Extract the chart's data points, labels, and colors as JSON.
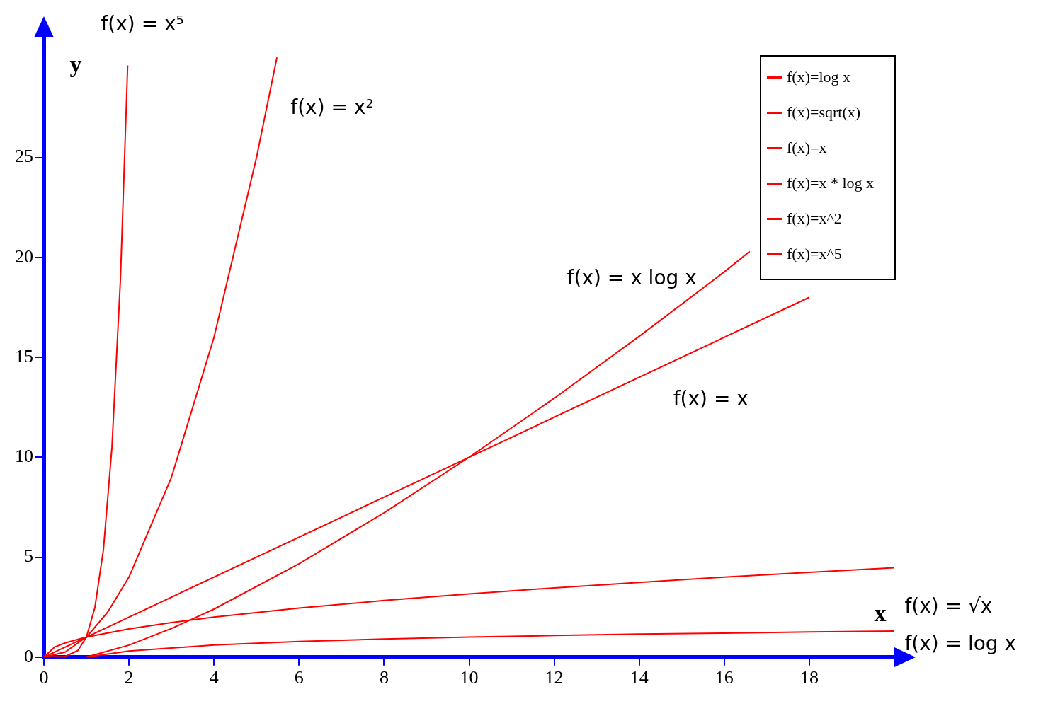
{
  "chart_data": {
    "type": "line",
    "xlabel": "x",
    "ylabel": "y",
    "xlim": [
      0,
      20
    ],
    "ylim": [
      0,
      31
    ],
    "xticks": [
      0,
      2,
      4,
      6,
      8,
      10,
      12,
      14,
      16,
      18
    ],
    "yticks": [
      0,
      5,
      10,
      15,
      20,
      25
    ],
    "legend": "top right",
    "series": [
      {
        "name": "f(x)=log x",
        "color": "#ff0000",
        "x": [
          1,
          2,
          4,
          6,
          8,
          10,
          12,
          14,
          16,
          18,
          20
        ],
        "values": [
          0,
          0.3,
          0.6,
          0.78,
          0.9,
          1.0,
          1.08,
          1.15,
          1.2,
          1.26,
          1.3
        ]
      },
      {
        "name": "f(x)=sqrt(x)",
        "color": "#ff0000",
        "x": [
          0,
          0.25,
          0.5,
          1,
          2,
          3,
          4,
          6,
          8,
          10,
          12,
          14,
          16,
          18,
          20
        ],
        "values": [
          0,
          0.5,
          0.71,
          1,
          1.41,
          1.73,
          2,
          2.45,
          2.83,
          3.16,
          3.46,
          3.74,
          4,
          4.24,
          4.47
        ]
      },
      {
        "name": "f(x)=x",
        "color": "#ff0000",
        "x": [
          0,
          1,
          10,
          18
        ],
        "values": [
          0,
          1,
          10,
          18
        ]
      },
      {
        "name": "f(x)=x * log x",
        "color": "#ff0000",
        "x": [
          1,
          2,
          3,
          4,
          6,
          8,
          10,
          12,
          14,
          16,
          16.6
        ],
        "values": [
          0,
          0.6,
          1.43,
          2.4,
          4.67,
          7.22,
          10,
          12.95,
          16.05,
          19.27,
          20.3
        ]
      },
      {
        "name": "f(x)=x^2",
        "color": "#ff0000",
        "x": [
          0,
          0.5,
          1,
          1.5,
          2,
          3,
          4,
          5,
          5.48
        ],
        "values": [
          0,
          0.25,
          1,
          2.25,
          4,
          9,
          16,
          25,
          30
        ]
      },
      {
        "name": "f(x)=x^5",
        "color": "#ff0000",
        "x": [
          0,
          0.5,
          0.8,
          1,
          1.2,
          1.4,
          1.6,
          1.8,
          1.97
        ],
        "values": [
          0,
          0.03,
          0.33,
          1,
          2.49,
          5.38,
          10.5,
          18.9,
          29.6
        ]
      }
    ],
    "annotations": [
      "f(x) = x⁵",
      "f(x) = x²",
      "f(x) = x log x",
      "f(x) = x",
      "f(x) = √x",
      "f(x) = log x"
    ]
  }
}
